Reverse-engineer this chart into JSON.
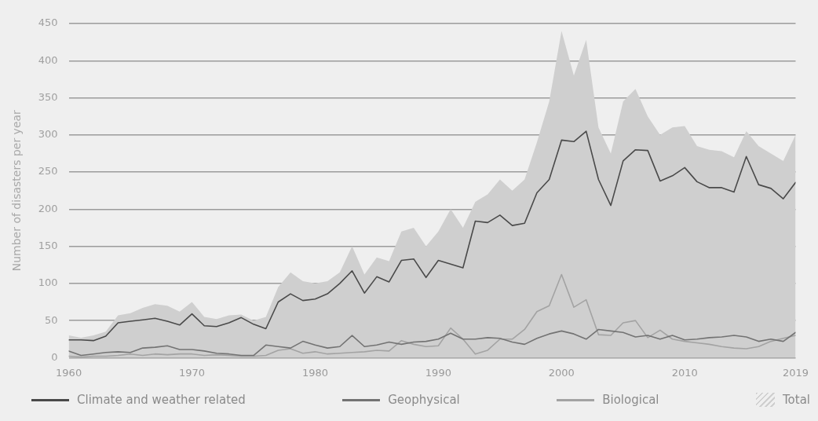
{
  "chart_data": {
    "type": "line",
    "ylabel": "Number of disasters per year",
    "grid": "y",
    "legend": "bottom",
    "marker": "none",
    "line_style": "solid",
    "x": [
      1960,
      1961,
      1962,
      1963,
      1964,
      1965,
      1966,
      1967,
      1968,
      1969,
      1970,
      1971,
      1972,
      1973,
      1974,
      1975,
      1976,
      1977,
      1978,
      1979,
      1980,
      1981,
      1982,
      1983,
      1984,
      1985,
      1986,
      1987,
      1988,
      1989,
      1990,
      1991,
      1992,
      1993,
      1994,
      1995,
      1996,
      1997,
      1998,
      1999,
      2000,
      2001,
      2002,
      2003,
      2004,
      2005,
      2006,
      2007,
      2008,
      2009,
      2010,
      2011,
      2012,
      2013,
      2014,
      2015,
      2016,
      2017,
      2018,
      2019
    ],
    "xlim": [
      1960,
      2019
    ],
    "xticks": [
      1960,
      1970,
      1980,
      1990,
      2000,
      2010,
      2019
    ],
    "ylim": [
      0,
      450
    ],
    "yticks": [
      0,
      50,
      100,
      150,
      200,
      250,
      300,
      350,
      400,
      450
    ],
    "series": [
      {
        "name": "Total",
        "type": "area",
        "color": "#cfcfcf",
        "values": [
          30,
          27,
          30,
          35,
          57,
          60,
          67,
          72,
          70,
          62,
          75,
          55,
          52,
          57,
          58,
          50,
          55,
          95,
          115,
          103,
          100,
          103,
          115,
          150,
          112,
          135,
          130,
          170,
          175,
          150,
          170,
          200,
          175,
          210,
          220,
          240,
          225,
          240,
          290,
          345,
          440,
          380,
          428,
          310,
          275,
          345,
          362,
          325,
          300,
          310,
          312,
          285,
          280,
          278,
          270,
          305,
          285,
          275,
          265,
          300
        ]
      },
      {
        "name": "Climate and weather related",
        "color": "#4a4a4a",
        "values": [
          24,
          24,
          23,
          29,
          47,
          49,
          51,
          53,
          49,
          44,
          59,
          43,
          42,
          47,
          54,
          45,
          39,
          75,
          86,
          77,
          79,
          86,
          100,
          117,
          87,
          109,
          102,
          131,
          133,
          108,
          131,
          126,
          121,
          184,
          182,
          192,
          178,
          181,
          222,
          240,
          293,
          291,
          305,
          240,
          205,
          265,
          280,
          279,
          238,
          245,
          256,
          237,
          229,
          229,
          223,
          271,
          233,
          228,
          214,
          236
        ]
      },
      {
        "name": "Geophysical",
        "color": "#737373",
        "values": [
          9,
          3,
          5,
          7,
          8,
          7,
          13,
          14,
          16,
          11,
          11,
          9,
          6,
          5,
          3,
          3,
          17,
          15,
          13,
          22,
          17,
          13,
          15,
          30,
          15,
          17,
          21,
          18,
          21,
          22,
          25,
          33,
          25,
          25,
          27,
          26,
          21,
          18,
          26,
          32,
          36,
          32,
          25,
          38,
          36,
          34,
          28,
          30,
          25,
          30,
          24,
          25,
          27,
          28,
          30,
          28,
          22,
          25,
          22,
          34
        ]
      },
      {
        "name": "Biological",
        "color": "#a3a3a3",
        "values": [
          2,
          1,
          2,
          2,
          3,
          5,
          3,
          5,
          4,
          5,
          5,
          3,
          4,
          3,
          2,
          2,
          3,
          10,
          12,
          6,
          8,
          5,
          6,
          7,
          8,
          10,
          9,
          23,
          18,
          15,
          16,
          40,
          25,
          5,
          10,
          25,
          25,
          38,
          62,
          70,
          112,
          68,
          78,
          31,
          30,
          47,
          50,
          27,
          37,
          25,
          22,
          20,
          18,
          15,
          13,
          12,
          15,
          22,
          26,
          30
        ]
      }
    ]
  }
}
